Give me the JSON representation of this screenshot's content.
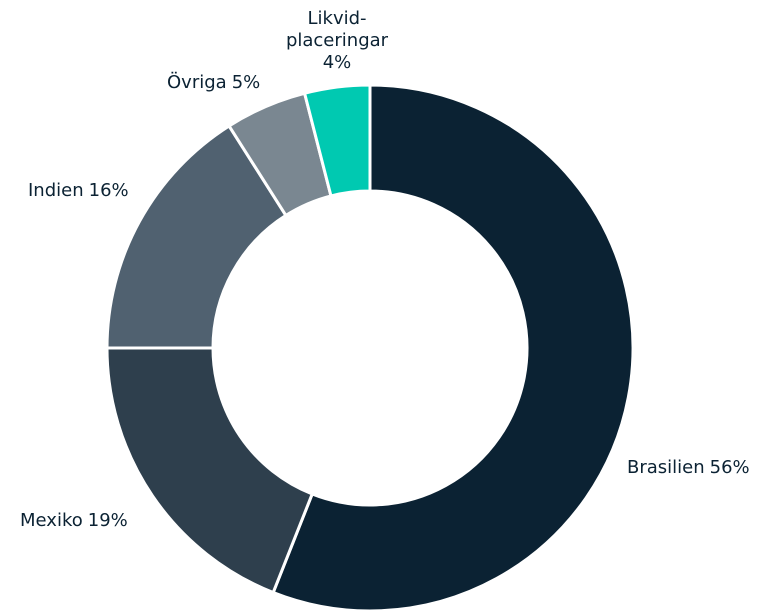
{
  "chart_data": {
    "type": "donut",
    "categories": [
      "Brasilien",
      "Mexiko",
      "Indien",
      "Övriga",
      "Likvid-placeringar"
    ],
    "values": [
      56,
      19,
      16,
      5,
      4
    ],
    "value_labels": [
      "56%",
      "19%",
      "16%",
      "5%",
      "4%"
    ],
    "colors": [
      "#0b2233",
      "#2e3f4d",
      "#506170",
      "#7a8791",
      "#00c9b1"
    ]
  }
}
